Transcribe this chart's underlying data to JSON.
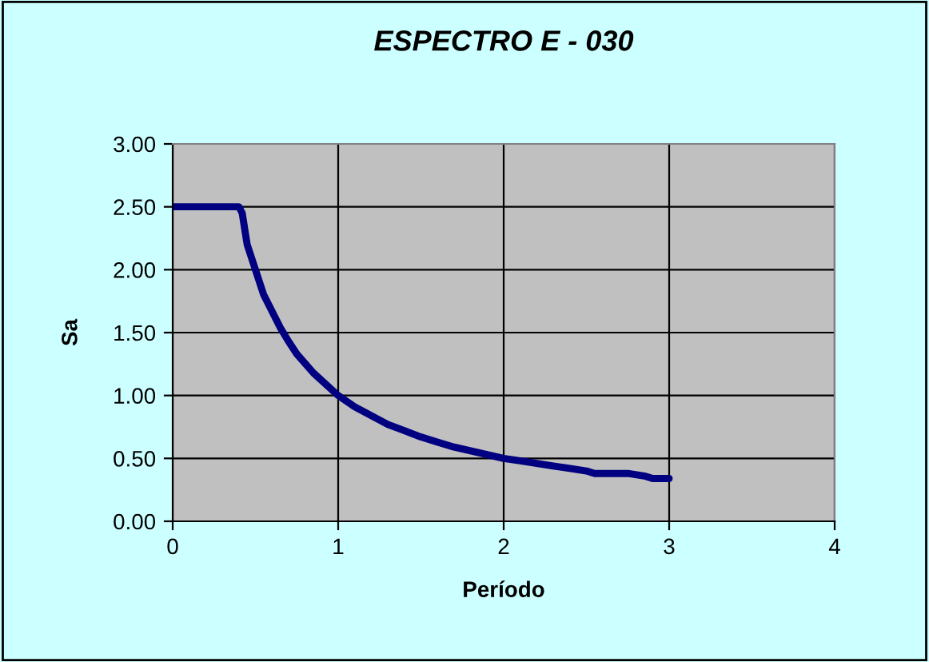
{
  "chart_data": {
    "type": "line",
    "title": "ESPECTRO E - 030",
    "xlabel": "Período",
    "ylabel": "Sa",
    "series": [
      {
        "color": "#000080",
        "x": [
          0,
          0.4,
          0.42,
          0.45,
          0.5,
          0.55,
          0.6,
          0.65,
          0.7,
          0.75,
          0.85,
          1.0,
          1.1,
          1.2,
          1.3,
          1.4,
          1.5,
          1.6,
          1.7,
          1.8,
          1.9,
          2.0,
          2.1,
          2.2,
          2.3,
          2.4,
          2.5,
          2.55,
          2.75,
          2.85,
          2.9,
          3.0
        ],
        "values": [
          2.5,
          2.5,
          2.45,
          2.2,
          2.0,
          1.8,
          1.67,
          1.54,
          1.43,
          1.33,
          1.18,
          1.0,
          0.91,
          0.84,
          0.77,
          0.72,
          0.67,
          0.63,
          0.59,
          0.56,
          0.53,
          0.5,
          0.48,
          0.46,
          0.44,
          0.42,
          0.4,
          0.38,
          0.38,
          0.36,
          0.34,
          0.34
        ]
      }
    ],
    "xlim": [
      0,
      4
    ],
    "xticks": [
      0,
      1,
      2,
      3,
      4
    ],
    "ylim": [
      0,
      3
    ],
    "yticks": [
      {
        "value": 0,
        "label": "0.00"
      },
      {
        "value": 0.5,
        "label": "0.50"
      },
      {
        "value": 1,
        "label": "1.00"
      },
      {
        "value": 1.5,
        "label": "1.50"
      },
      {
        "value": 2,
        "label": "2.00"
      },
      {
        "value": 2.5,
        "label": "2.50"
      },
      {
        "value": 3,
        "label": "3.00"
      }
    ],
    "grid": true,
    "legend": false,
    "marker": "none",
    "line_style": "solid"
  }
}
